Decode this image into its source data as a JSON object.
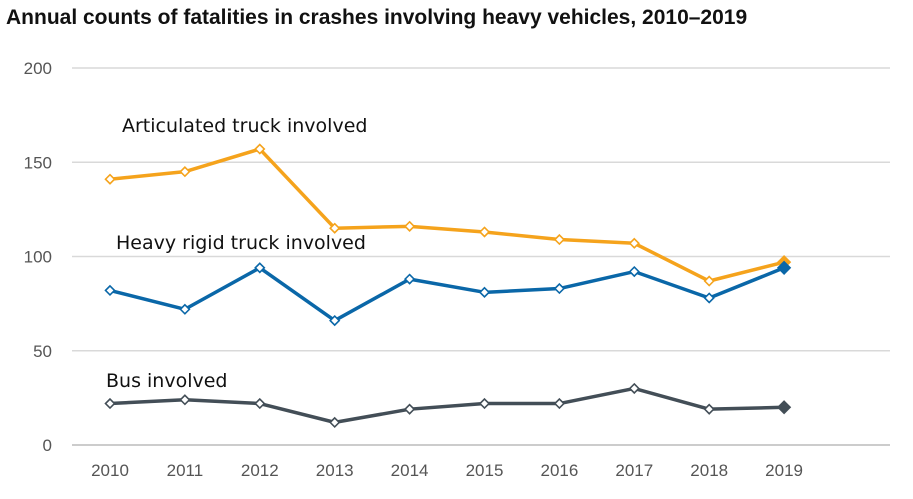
{
  "chart_data": {
    "type": "line",
    "title": "Annual counts of fatalities in crashes involving heavy vehicles, 2010–2019",
    "xlabel": "",
    "ylabel": "",
    "ylim": [
      0,
      200
    ],
    "yticks": [
      "0",
      "50",
      "100",
      "150",
      "200"
    ],
    "grid": true,
    "categories": [
      "2010",
      "2011",
      "2012",
      "2013",
      "2014",
      "2015",
      "2016",
      "2017",
      "2018",
      "2019"
    ],
    "series": [
      {
        "name": "Articulated truck involved",
        "color": "#f5a31c",
        "values": [
          141,
          145,
          157,
          115,
          116,
          113,
          109,
          107,
          87,
          97
        ]
      },
      {
        "name": "Heavy rigid truck involved",
        "color": "#0a67a8",
        "values": [
          82,
          72,
          94,
          66,
          88,
          81,
          83,
          92,
          78,
          94
        ]
      },
      {
        "name": "Bus involved",
        "color": "#434e57",
        "values": [
          22,
          24,
          22,
          12,
          19,
          22,
          22,
          30,
          19,
          20
        ]
      }
    ],
    "marker": "hollow diamond; last point filled diamond"
  }
}
